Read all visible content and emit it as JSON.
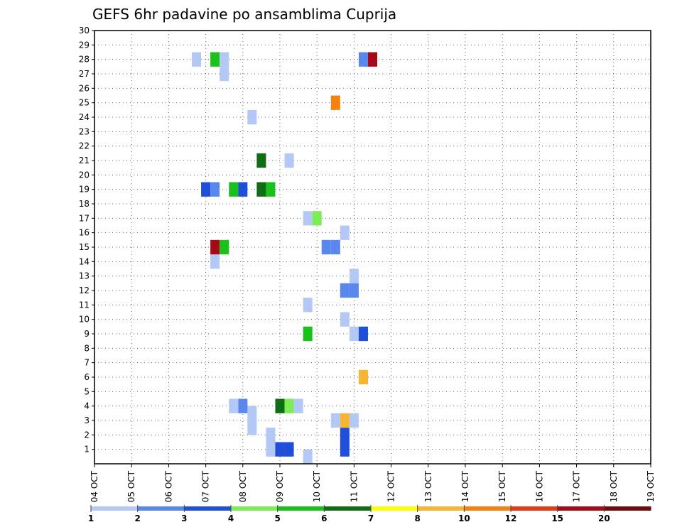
{
  "chart_data": {
    "type": "heatmap",
    "title": "GEFS 6hr padavine po ansamblima Cuprija",
    "x_tick_labels": [
      "04 OCT",
      "05 OCT",
      "06 OCT",
      "07 OCT",
      "08 OCT",
      "09 OCT",
      "10 OCT",
      "11 OCT",
      "12 OCT",
      "13 OCT",
      "14 OCT",
      "15 OCT",
      "16 OCT",
      "17 OCT",
      "18 OCT",
      "19 OCT"
    ],
    "y_tick_labels": [
      "1",
      "2",
      "3",
      "4",
      "5",
      "6",
      "7",
      "8",
      "9",
      "10",
      "11",
      "12",
      "13",
      "14",
      "15",
      "16",
      "17",
      "18",
      "19",
      "20",
      "21",
      "22",
      "23",
      "24",
      "25",
      "26",
      "27",
      "28",
      "29",
      "30"
    ],
    "xlim": [
      0,
      60
    ],
    "ylim": [
      0,
      30
    ],
    "grid": true,
    "legend": {
      "placement": "bottom",
      "labels": [
        "1",
        "2",
        "3",
        "4",
        "5",
        "6",
        "7",
        "8",
        "10",
        "12",
        "15",
        "20"
      ],
      "colors": [
        "#b4c8f5",
        "#5a87ee",
        "#1f4fd8",
        "#7ded56",
        "#19c119",
        "#0f6e14",
        "#ffff00",
        "#f8b534",
        "#f5820f",
        "#e03c14",
        "#a50a19",
        "#6e0a0a"
      ]
    },
    "cells": [
      {
        "x": 19,
        "y": 1,
        "color": "#b4c8f5"
      },
      {
        "x": 19,
        "y": 2,
        "color": "#b4c8f5"
      },
      {
        "x": 20,
        "y": 1,
        "color": "#1f4fd8"
      },
      {
        "x": 21,
        "y": 1,
        "color": "#1f4fd8"
      },
      {
        "x": 23,
        "y": 0.5,
        "color": "#b4c8f5"
      },
      {
        "x": 17,
        "y": 2.5,
        "color": "#b4c8f5"
      },
      {
        "x": 17,
        "y": 3.5,
        "color": "#b4c8f5"
      },
      {
        "x": 16,
        "y": 4,
        "color": "#5a87ee"
      },
      {
        "x": 15,
        "y": 4,
        "color": "#b4c8f5"
      },
      {
        "x": 20,
        "y": 4,
        "color": "#0f6e14"
      },
      {
        "x": 21,
        "y": 4,
        "color": "#7ded56"
      },
      {
        "x": 22,
        "y": 4,
        "color": "#b4c8f5"
      },
      {
        "x": 27,
        "y": 1,
        "color": "#1f4fd8"
      },
      {
        "x": 27,
        "y": 2,
        "color": "#1f4fd8"
      },
      {
        "x": 26,
        "y": 3,
        "color": "#b4c8f5"
      },
      {
        "x": 27,
        "y": 3,
        "color": "#f8b534"
      },
      {
        "x": 28,
        "y": 3,
        "color": "#b4c8f5"
      },
      {
        "x": 29,
        "y": 6,
        "color": "#f8b534"
      },
      {
        "x": 23,
        "y": 9,
        "color": "#19c119"
      },
      {
        "x": 28,
        "y": 9,
        "color": "#b4c8f5"
      },
      {
        "x": 29,
        "y": 9,
        "color": "#1f4fd8"
      },
      {
        "x": 27,
        "y": 10,
        "color": "#b4c8f5"
      },
      {
        "x": 23,
        "y": 11,
        "color": "#b4c8f5"
      },
      {
        "x": 27,
        "y": 12,
        "color": "#5a87ee"
      },
      {
        "x": 28,
        "y": 12,
        "color": "#5a87ee"
      },
      {
        "x": 28,
        "y": 13,
        "color": "#b4c8f5"
      },
      {
        "x": 13,
        "y": 14,
        "color": "#b4c8f5"
      },
      {
        "x": 13,
        "y": 15,
        "color": "#a50a19"
      },
      {
        "x": 14,
        "y": 15,
        "color": "#19c119"
      },
      {
        "x": 25,
        "y": 15,
        "color": "#5a87ee"
      },
      {
        "x": 26,
        "y": 15,
        "color": "#5a87ee"
      },
      {
        "x": 27,
        "y": 16,
        "color": "#b4c8f5"
      },
      {
        "x": 23,
        "y": 17,
        "color": "#b4c8f5"
      },
      {
        "x": 24,
        "y": 17,
        "color": "#7ded56"
      },
      {
        "x": 12,
        "y": 19,
        "color": "#1f4fd8"
      },
      {
        "x": 13,
        "y": 19,
        "color": "#5a87ee"
      },
      {
        "x": 15,
        "y": 19,
        "color": "#19c119"
      },
      {
        "x": 16,
        "y": 19,
        "color": "#1f4fd8"
      },
      {
        "x": 18,
        "y": 19,
        "color": "#0f6e14"
      },
      {
        "x": 19,
        "y": 19,
        "color": "#19c119"
      },
      {
        "x": 18,
        "y": 21,
        "color": "#0f6e14"
      },
      {
        "x": 21,
        "y": 21,
        "color": "#b4c8f5"
      },
      {
        "x": 17,
        "y": 24,
        "color": "#b4c8f5"
      },
      {
        "x": 26,
        "y": 25,
        "color": "#f5820f"
      },
      {
        "x": 14,
        "y": 27,
        "color": "#b4c8f5"
      },
      {
        "x": 11,
        "y": 28,
        "color": "#b4c8f5"
      },
      {
        "x": 13,
        "y": 28,
        "color": "#19c119"
      },
      {
        "x": 14,
        "y": 28,
        "color": "#b4c8f5"
      },
      {
        "x": 29,
        "y": 28,
        "color": "#5a87ee"
      },
      {
        "x": 30,
        "y": 28,
        "color": "#a50a19"
      }
    ]
  }
}
